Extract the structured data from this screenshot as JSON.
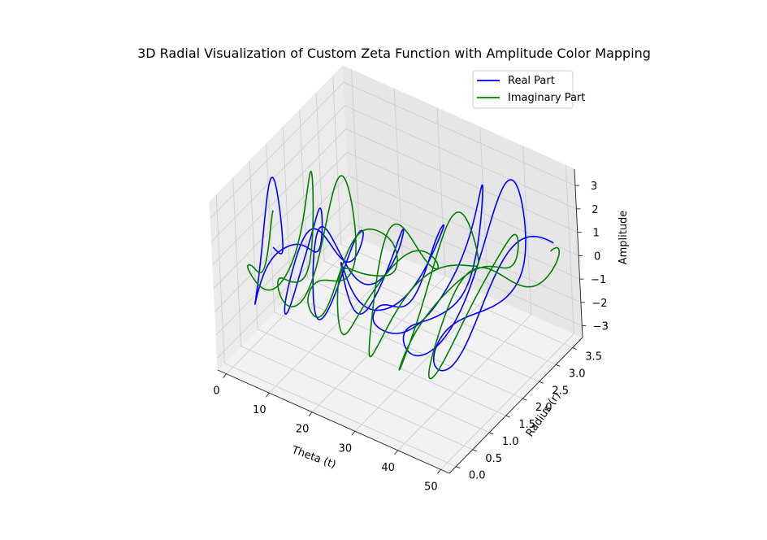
{
  "chart_data": {
    "type": "line",
    "projection": "3d",
    "title": "3D Radial Visualization of Custom Zeta Function with Amplitude Color Mapping",
    "xlabel": "Theta (t)",
    "ylabel": "Radius (r)",
    "zlabel": "Amplitude",
    "xlim": [
      -2,
      52
    ],
    "ylim": [
      -0.2,
      3.8
    ],
    "zlim": [
      -3.5,
      3.7
    ],
    "x_ticks": [
      "0",
      "10",
      "20",
      "30",
      "40",
      "50"
    ],
    "y_ticks": [
      "0.0",
      "0.5",
      "1.0",
      "1.5",
      "2.0",
      "2.5",
      "3.0",
      "3.5"
    ],
    "z_ticks": [
      "−3",
      "−2",
      "−1",
      "0",
      "1",
      "2",
      "3"
    ],
    "grid": true,
    "legend_position": "top-right",
    "series": [
      {
        "name": "Real Part",
        "color": "#0000ff",
        "t_range": [
          1,
          50
        ],
        "r_range": [
          0.1,
          3.6
        ],
        "amplitude_range": [
          -3.3,
          3.7
        ]
      },
      {
        "name": "Imaginary Part",
        "color": "#008000",
        "t_range": [
          1,
          50
        ],
        "r_range": [
          0.1,
          3.6
        ],
        "amplitude_range": [
          -3.3,
          3.5
        ]
      }
    ]
  }
}
